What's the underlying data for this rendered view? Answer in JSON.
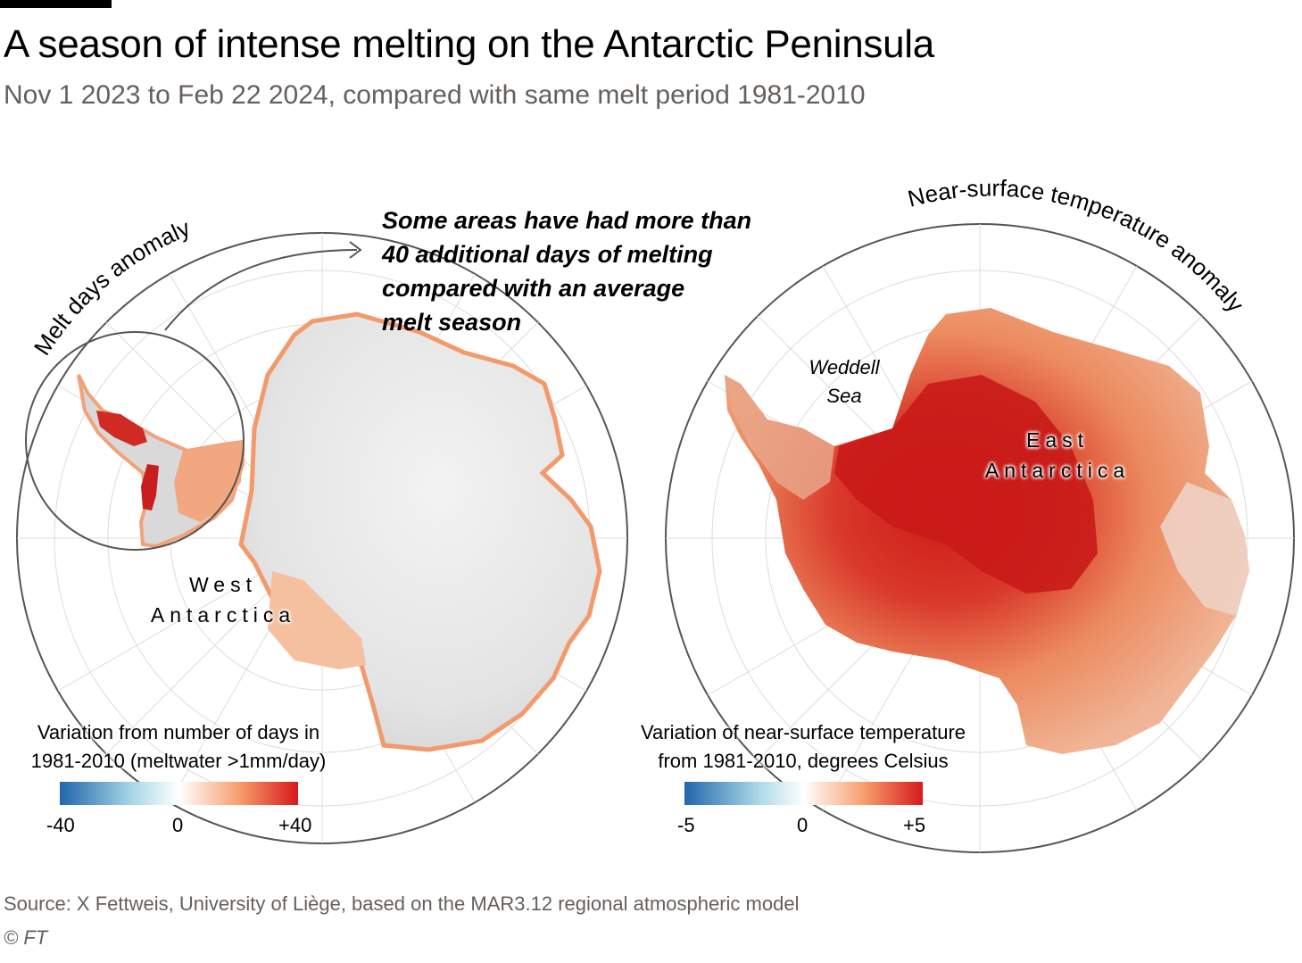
{
  "title": "A season of intense melting on the Antarctic Peninsula",
  "subtitle": "Nov 1 2023 to Feb 22 2024, compared with same melt period 1981-2010",
  "left_map": {
    "label": "Melt days anomaly",
    "annotation": [
      "Some areas have had more than",
      "40 additional days of melting",
      "compared with an average",
      "melt season"
    ],
    "region_label": [
      "West",
      "Antarctica"
    ],
    "legend": {
      "title": [
        "Variation from number of days in",
        "1981-2010 (meltwater >1mm/day)"
      ],
      "ticks": [
        "-40",
        "0",
        "+40"
      ],
      "colors": [
        "#2166ac",
        "#a6d6e6",
        "#ffffff",
        "#f7a06e",
        "#d7191c"
      ]
    }
  },
  "right_map": {
    "label": "Near-surface temperature anomaly",
    "sea_label": [
      "Weddell",
      "Sea"
    ],
    "region_label": [
      "East",
      "Antarctica"
    ],
    "legend": {
      "title": [
        "Variation of near-surface temperature",
        "from 1981-2010, degrees Celsius"
      ],
      "ticks": [
        "-5",
        "0",
        "+5"
      ],
      "colors": [
        "#2166ac",
        "#a6d6e6",
        "#ffffff",
        "#f7a06e",
        "#d7191c"
      ]
    }
  },
  "source": "Source: X Fettweis, University of Liège, based on the MAR3.12 regional atmospheric model",
  "credit": "© FT"
}
